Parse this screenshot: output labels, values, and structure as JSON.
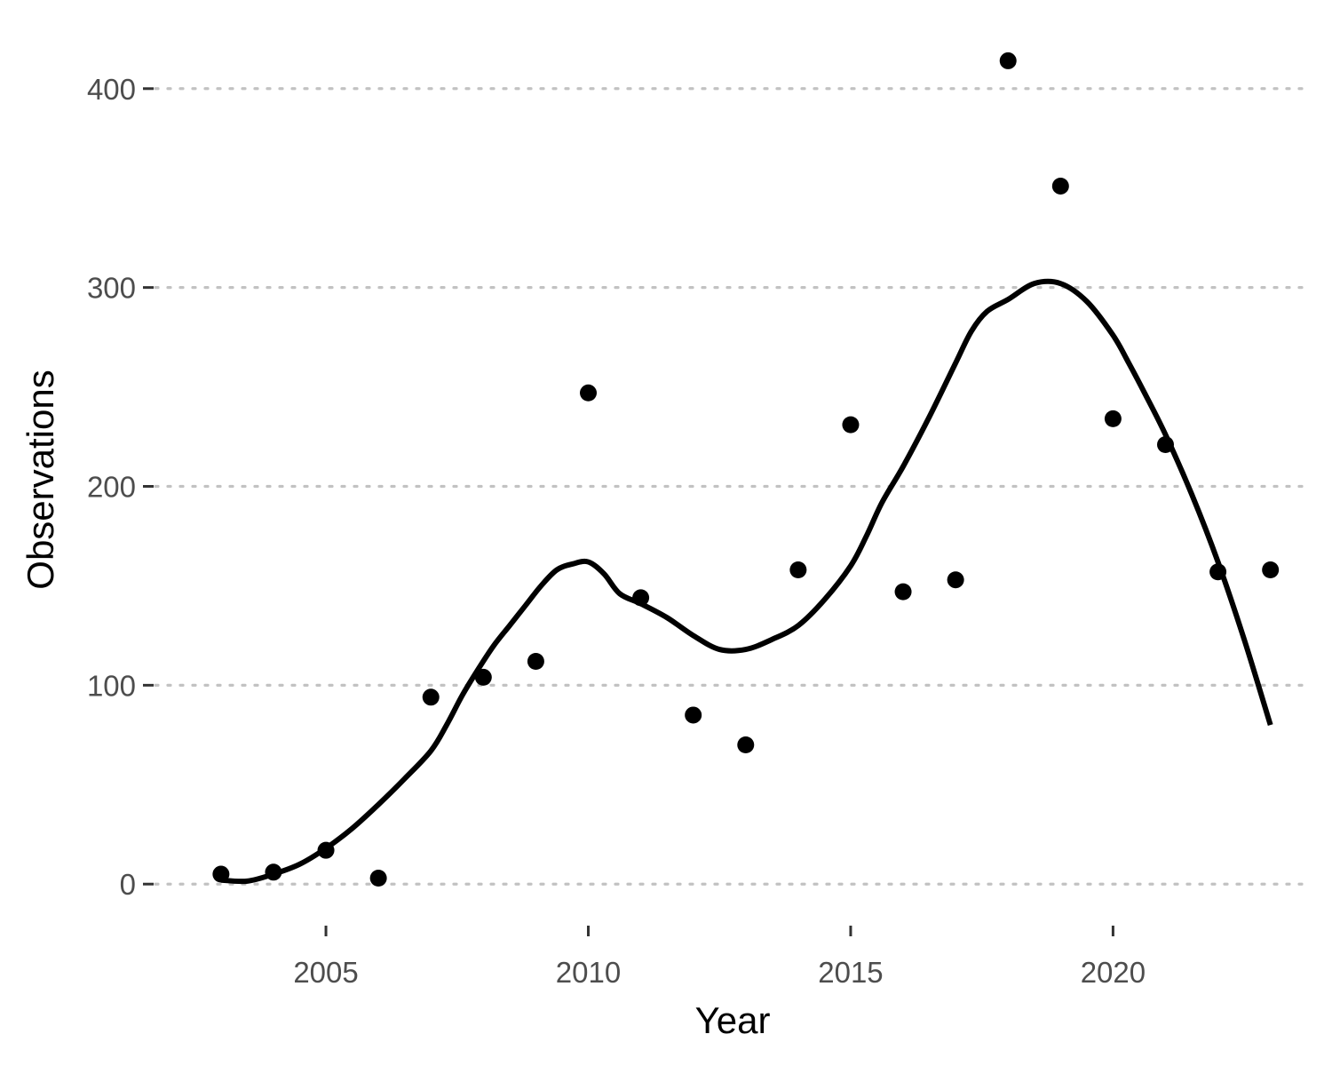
{
  "chart_data": {
    "type": "scatter",
    "title": "",
    "xlabel": "Year",
    "ylabel": "Observations",
    "xlim": [
      2001.75,
      2023.75
    ],
    "ylim": [
      -20,
      420
    ],
    "x_ticks": [
      2005,
      2010,
      2015,
      2020
    ],
    "y_ticks": [
      0,
      100,
      200,
      300,
      400
    ],
    "grid": "horizontal major dotted",
    "legend": "none",
    "colors": {
      "points": "#000000",
      "smooth": "#000000",
      "grid": "#c2c2c2",
      "tick_text": "#4d4d4d"
    },
    "series": [
      {
        "type": "scatter",
        "x": [
          2003,
          2004,
          2005,
          2006,
          2007,
          2008,
          2009,
          2010,
          2011,
          2012,
          2013,
          2014,
          2015,
          2016,
          2017,
          2018,
          2019,
          2020,
          2021,
          2022,
          2023
        ],
        "y": [
          5,
          6,
          17,
          3,
          94,
          104,
          112,
          247,
          144,
          85,
          70,
          158,
          231,
          147,
          153,
          414,
          351,
          234,
          221,
          157,
          158
        ]
      },
      {
        "type": "line",
        "x": [
          2003,
          2003.5,
          2004,
          2004.5,
          2005,
          2005.5,
          2006,
          2006.5,
          2007,
          2007.3,
          2007.6,
          2007.9,
          2008.2,
          2008.5,
          2008.8,
          2009.1,
          2009.4,
          2009.7,
          2010,
          2010.3,
          2010.6,
          2011,
          2011.5,
          2012,
          2012.5,
          2013,
          2013.5,
          2014,
          2014.5,
          2015,
          2015.3,
          2015.6,
          2016,
          2016.5,
          2017,
          2017.3,
          2017.6,
          2018,
          2018.5,
          2019,
          2019.5,
          2020,
          2020.3,
          2020.6,
          2021,
          2021.5,
          2022,
          2022.5,
          2023
        ],
        "y": [
          2,
          1.5,
          5,
          10,
          18,
          28,
          40,
          53,
          67,
          80,
          95,
          108,
          120,
          130,
          140,
          150,
          158,
          161,
          162,
          156,
          146,
          141,
          134,
          125,
          118,
          118,
          123,
          130,
          143,
          160,
          175,
          192,
          210,
          235,
          262,
          278,
          288,
          294,
          302,
          302,
          293,
          276,
          262,
          247,
          226,
          196,
          162,
          123,
          80
        ]
      }
    ]
  }
}
